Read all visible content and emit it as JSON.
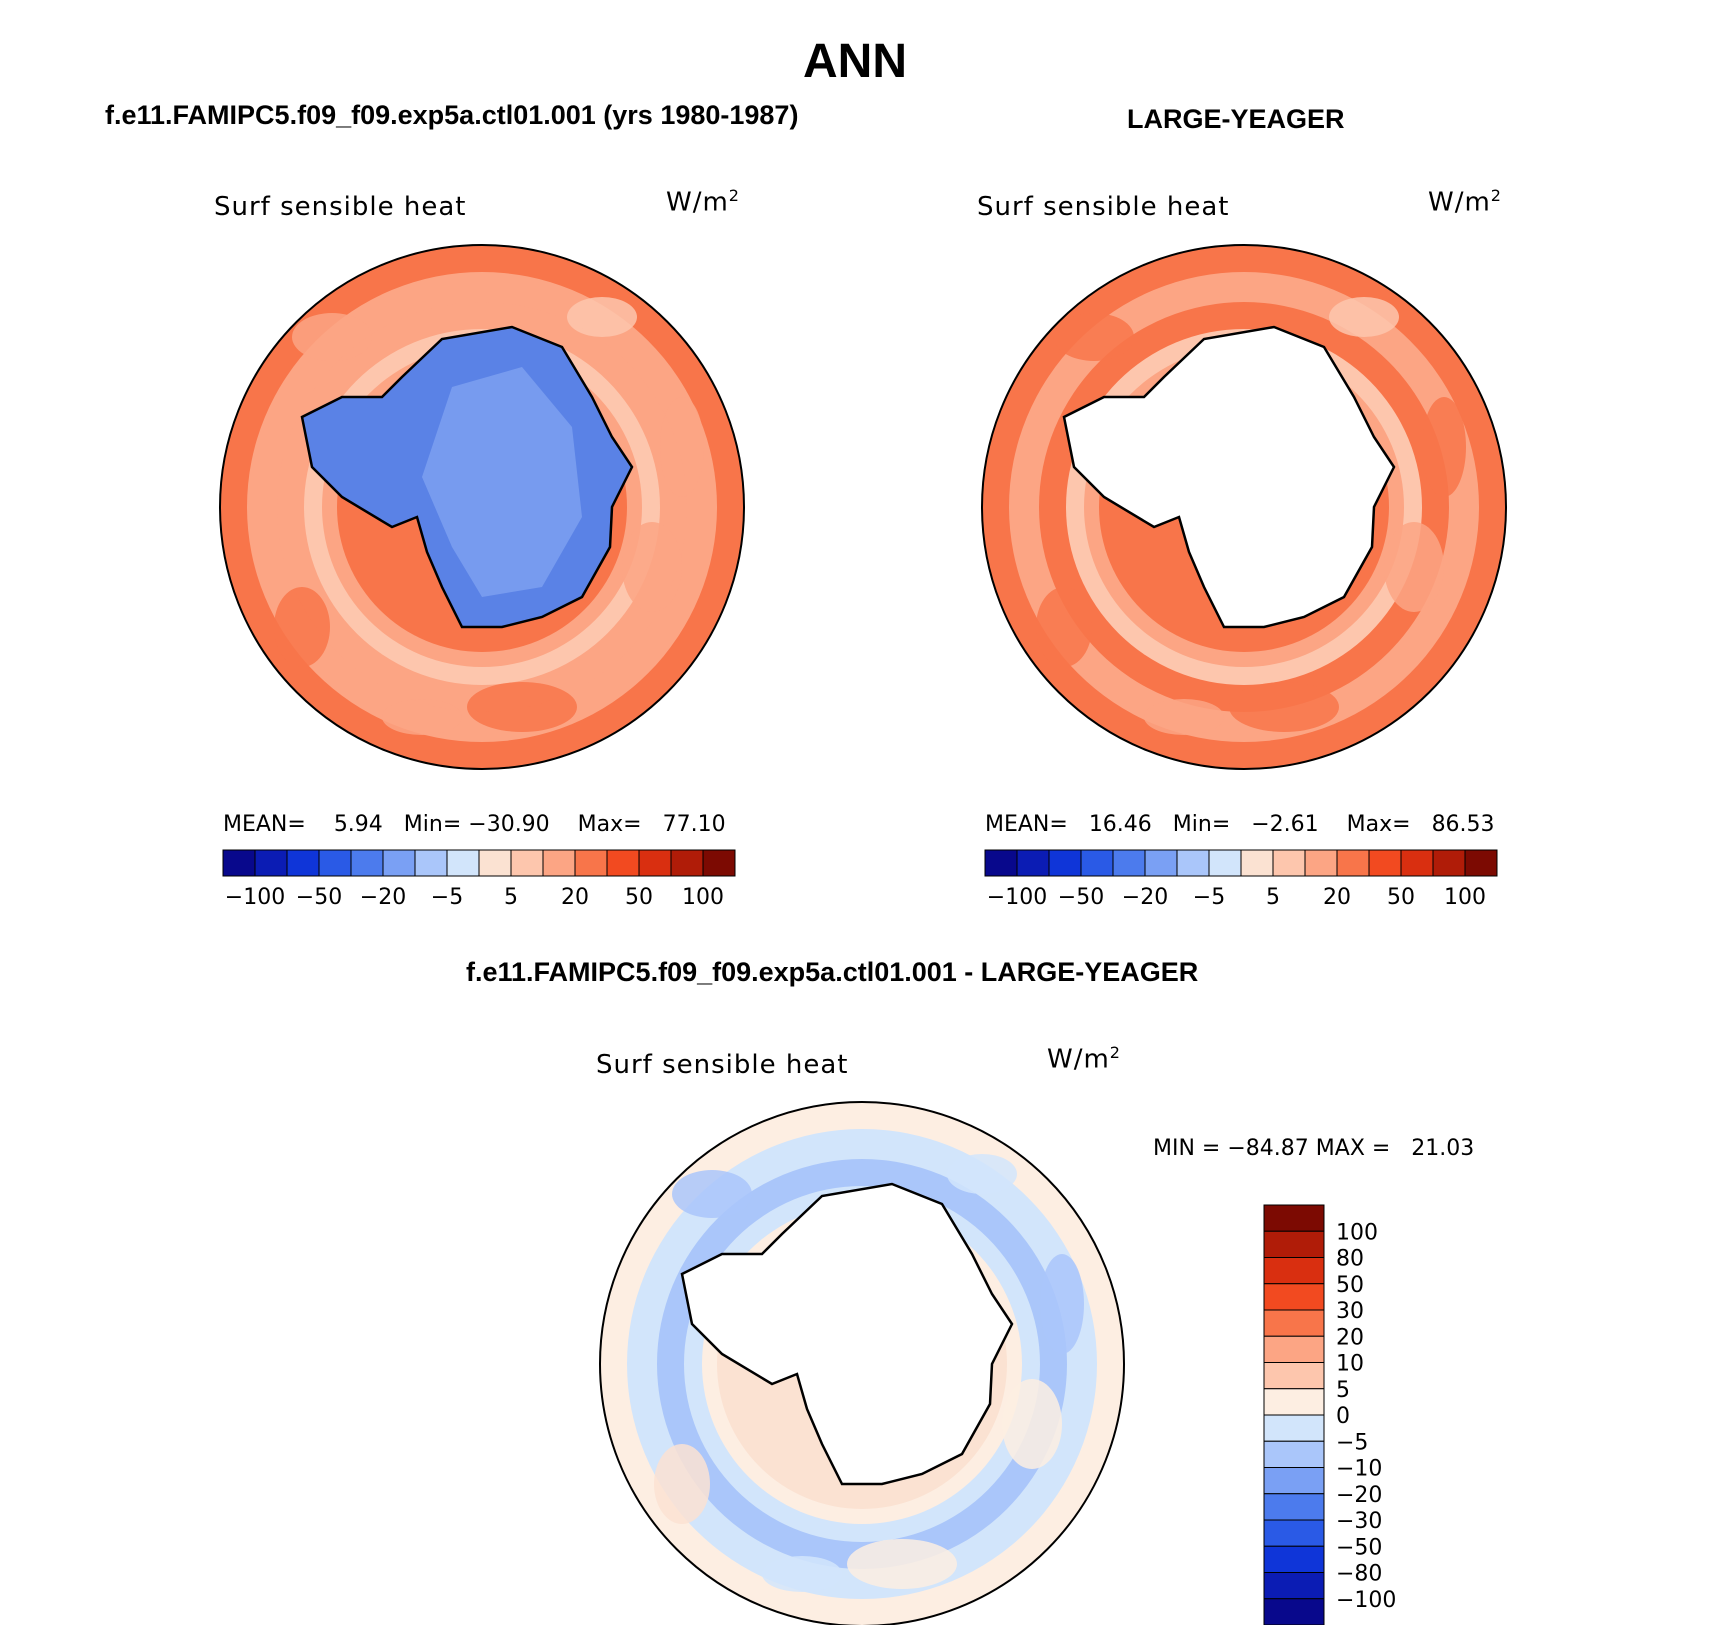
{
  "title": "ANN",
  "colors": {
    "coastline": "#000000",
    "land": "#ffffff"
  },
  "chart_data": [
    {
      "type": "heatmap",
      "projection": "south polar stereographic",
      "case_title": "f.e11.FAMIPC5.f09_f09.exp5a.ctl01.001 (yrs 1980-1987)",
      "field_label": "Surf sensible heat",
      "units": "W/m",
      "units_sup": "2",
      "stats": {
        "mean_label": "MEAN=",
        "mean": "5.94",
        "min_label": "Min=",
        "min": "−30.90",
        "max_label": "Max=",
        "max": "77.10"
      },
      "colorbar": {
        "orientation": "horizontal",
        "colors": [
          "#08088c",
          "#0b1cb4",
          "#0f35d8",
          "#2a5ae6",
          "#4c7bed",
          "#7aa0f4",
          "#aac6fa",
          "#d2e5fb",
          "#fbe2d2",
          "#fdc6ad",
          "#fca584",
          "#f8754a",
          "#f24a20",
          "#d92f10",
          "#b01c08",
          "#7c0a02"
        ],
        "tick_labels": [
          "−100",
          "−50",
          "−20",
          "−5",
          "5",
          "20",
          "50",
          "100"
        ]
      },
      "fill": {
        "land": "#5a82e6",
        "land_light": "#8fb0f5",
        "ocean_ring": [
          "#f8754a",
          "#fca584",
          "#fca584",
          "#fdc6ad",
          "#fca584",
          "#f8754a"
        ]
      }
    },
    {
      "type": "heatmap",
      "projection": "south polar stereographic",
      "case_title": "LARGE-YEAGER",
      "field_label": "Surf sensible heat",
      "units": "W/m",
      "units_sup": "2",
      "stats": {
        "mean_label": "MEAN=",
        "mean": "16.46",
        "min_label": "Min=",
        "min": "−2.61",
        "max_label": "Max=",
        "max": "86.53"
      },
      "colorbar": {
        "orientation": "horizontal",
        "colors": [
          "#08088c",
          "#0b1cb4",
          "#0f35d8",
          "#2a5ae6",
          "#4c7bed",
          "#7aa0f4",
          "#aac6fa",
          "#d2e5fb",
          "#fbe2d2",
          "#fdc6ad",
          "#fca584",
          "#f8754a",
          "#f24a20",
          "#d92f10",
          "#b01c08",
          "#7c0a02"
        ],
        "tick_labels": [
          "−100",
          "−50",
          "−20",
          "−5",
          "5",
          "20",
          "50",
          "100"
        ]
      },
      "fill": {
        "land": "#ffffff",
        "ocean_ring": [
          "#f8754a",
          "#fca584",
          "#f8754a",
          "#fdc6ad",
          "#fca584",
          "#f8754a"
        ]
      }
    },
    {
      "type": "heatmap",
      "projection": "south polar stereographic",
      "case_title": "f.e11.FAMIPC5.f09_f09.exp5a.ctl01.001 - LARGE-YEAGER",
      "field_label": "Surf sensible heat",
      "units": "W/m",
      "units_sup": "2",
      "stats": {
        "min_label": "MIN =",
        "min": "−84.87",
        "max_label": "MAX =",
        "max": "21.03"
      },
      "colorbar": {
        "orientation": "vertical",
        "colors": [
          "#7c0a02",
          "#b01c08",
          "#d92f10",
          "#f24a20",
          "#f8754a",
          "#fca584",
          "#fdc6ad",
          "#fdeee2",
          "#d2e5fb",
          "#aac6fa",
          "#7aa0f4",
          "#4c7bed",
          "#2a5ae6",
          "#0f35d8",
          "#0b1cb4",
          "#08088c"
        ],
        "tick_labels": [
          "100",
          "80",
          "50",
          "30",
          "20",
          "10",
          "5",
          "0",
          "−5",
          "−10",
          "−20",
          "−30",
          "−50",
          "−80",
          "−100"
        ]
      },
      "fill": {
        "land": "#ffffff",
        "ocean_ring": [
          "#fdeee2",
          "#d2e5fb",
          "#aac6fa",
          "#d2e5fb",
          "#fdeee2",
          "#fbe2d2"
        ]
      }
    }
  ]
}
